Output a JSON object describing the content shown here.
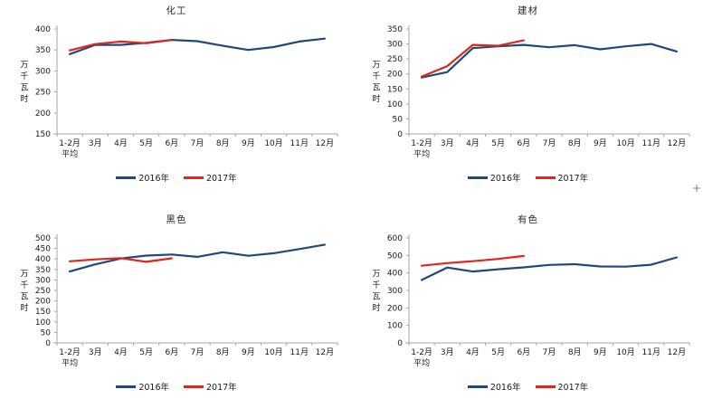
{
  "colors": {
    "background": "#ffffff",
    "series_2016": "#1F497D",
    "series_2017": "#E0261C",
    "axis": "#A6A6A6",
    "label_text": "#1a1a1a"
  },
  "artifact_plus": "+",
  "chart_data": [
    {
      "type": "line",
      "title": "化工",
      "ylabel": "万千瓦时",
      "xlabel": "",
      "categories": [
        "1-2月\n平均",
        "3月",
        "4月",
        "5月",
        "6月",
        "7月",
        "8月",
        "9月",
        "10月",
        "11月",
        "12月"
      ],
      "ylim": [
        150,
        400
      ],
      "ytick_step": 50,
      "grid": false,
      "legend_position": "bottom",
      "series": [
        {
          "name": "2016年",
          "color": "#1F497D",
          "values": [
            340,
            362,
            362,
            367,
            374,
            371,
            360,
            350,
            357,
            370,
            377
          ]
        },
        {
          "name": "2017年",
          "color": "#E0261C",
          "values": [
            349,
            364,
            370,
            366,
            374
          ]
        }
      ]
    },
    {
      "type": "line",
      "title": "建材",
      "ylabel": "万千瓦时",
      "xlabel": "",
      "categories": [
        "1-2月\n平均",
        "3月",
        "4月",
        "5月",
        "6月",
        "7月",
        "8月",
        "9月",
        "10月",
        "11月",
        "12月"
      ],
      "ylim": [
        0,
        350
      ],
      "ytick_step": 50,
      "grid": false,
      "legend_position": "bottom",
      "series": [
        {
          "name": "2016年",
          "color": "#1F497D",
          "values": [
            188,
            206,
            286,
            292,
            297,
            289,
            296,
            282,
            292,
            300,
            275
          ]
        },
        {
          "name": "2017年",
          "color": "#E0261C",
          "values": [
            191,
            226,
            297,
            294,
            312
          ]
        }
      ]
    },
    {
      "type": "line",
      "title": "黑色",
      "ylabel": "万千瓦时",
      "xlabel": "",
      "categories": [
        "1-2月\n平均",
        "3月",
        "4月",
        "5月",
        "6月",
        "7月",
        "8月",
        "9月",
        "10月",
        "11月",
        "12月"
      ],
      "ylim": [
        0,
        500
      ],
      "ytick_step": 50,
      "grid": false,
      "legend_position": "bottom",
      "series": [
        {
          "name": "2016年",
          "color": "#1F497D",
          "values": [
            340,
            374,
            402,
            416,
            421,
            410,
            432,
            415,
            427,
            447,
            468
          ]
        },
        {
          "name": "2017年",
          "color": "#E0261C",
          "values": [
            389,
            398,
            404,
            386,
            403
          ]
        }
      ]
    },
    {
      "type": "line",
      "title": "有色",
      "ylabel": "万千瓦时",
      "xlabel": "",
      "categories": [
        "1-2月\n平均",
        "3月",
        "4月",
        "5月",
        "6月",
        "7月",
        "8月",
        "9月",
        "10月",
        "11月",
        "12月"
      ],
      "ylim": [
        0,
        600
      ],
      "ytick_step": 100,
      "grid": false,
      "legend_position": "bottom",
      "series": [
        {
          "name": "2016年",
          "color": "#1F497D",
          "values": [
            360,
            431,
            408,
            421,
            432,
            446,
            450,
            437,
            436,
            447,
            489
          ]
        },
        {
          "name": "2017年",
          "color": "#E0261C",
          "values": [
            441,
            456,
            467,
            480,
            497
          ]
        }
      ]
    }
  ]
}
